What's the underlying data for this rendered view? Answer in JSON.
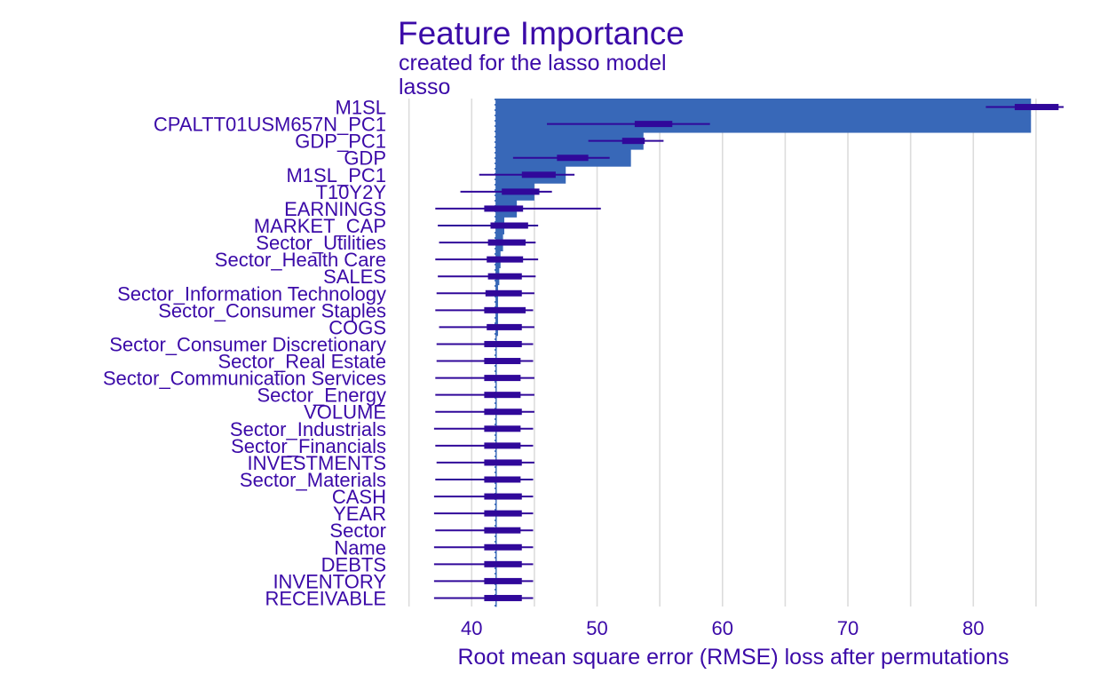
{
  "chart_data": {
    "type": "bar",
    "title": "Feature Importance",
    "subtitle": "created for the lasso model",
    "panel_label": "lasso",
    "xlabel": "Root mean square error (RMSE) loss after permutations",
    "xlim": [
      34.6,
      87.2
    ],
    "xticks": [
      40,
      50,
      60,
      70,
      80
    ],
    "baseline": 41.9,
    "grid": true,
    "colors": {
      "bar": "#3868b8",
      "boxplot": "#30089a",
      "text": "#3b0aa8",
      "grid": "#dcdcdc",
      "baseline": "#3868b8"
    },
    "features": [
      {
        "name": "M1SL",
        "value": 84.6,
        "whisker": [
          81.0,
          87.2
        ],
        "box": [
          83.3,
          86.8
        ]
      },
      {
        "name": "CPALTT01USM657N_PC1",
        "value": 84.6,
        "whisker": [
          46.0,
          59.0
        ],
        "box": [
          53.0,
          56.0
        ]
      },
      {
        "name": "GDP_PC1",
        "value": 53.7,
        "whisker": [
          49.3,
          55.3
        ],
        "box": [
          52.0,
          53.8
        ]
      },
      {
        "name": "GDP",
        "value": 52.7,
        "whisker": [
          43.3,
          51.0
        ],
        "box": [
          46.8,
          49.3
        ]
      },
      {
        "name": "M1SL_PC1",
        "value": 47.5,
        "whisker": [
          40.6,
          48.2
        ],
        "box": [
          44.0,
          46.7
        ]
      },
      {
        "name": "T10Y2Y",
        "value": 45.0,
        "whisker": [
          39.1,
          46.4
        ],
        "box": [
          42.4,
          45.4
        ]
      },
      {
        "name": "EARNINGS",
        "value": 43.6,
        "whisker": [
          37.1,
          50.3
        ],
        "box": [
          41.0,
          44.1
        ]
      },
      {
        "name": "MARKET_CAP",
        "value": 42.6,
        "whisker": [
          37.3,
          45.3
        ],
        "box": [
          41.5,
          44.5
        ]
      },
      {
        "name": "Sector_Utilities",
        "value": 42.5,
        "whisker": [
          37.4,
          45.1
        ],
        "box": [
          41.3,
          44.3
        ]
      },
      {
        "name": "Sector_Health Care",
        "value": 42.3,
        "whisker": [
          37.1,
          45.3
        ],
        "box": [
          41.2,
          44.1
        ]
      },
      {
        "name": "SALES",
        "value": 42.2,
        "whisker": [
          37.3,
          45.1
        ],
        "box": [
          41.3,
          44.0
        ]
      },
      {
        "name": "Sector_Information Technology",
        "value": 42.1,
        "whisker": [
          37.2,
          45.0
        ],
        "box": [
          41.1,
          44.0
        ]
      },
      {
        "name": "Sector_Consumer Staples",
        "value": 42.1,
        "whisker": [
          37.1,
          44.9
        ],
        "box": [
          41.0,
          44.3
        ]
      },
      {
        "name": "COGS",
        "value": 42.1,
        "whisker": [
          37.4,
          45.0
        ],
        "box": [
          41.2,
          44.0
        ]
      },
      {
        "name": "Sector_Consumer Discretionary",
        "value": 42.0,
        "whisker": [
          37.2,
          44.9
        ],
        "box": [
          41.0,
          44.0
        ]
      },
      {
        "name": "Sector_Real Estate",
        "value": 42.0,
        "whisker": [
          37.2,
          44.9
        ],
        "box": [
          41.0,
          43.9
        ]
      },
      {
        "name": "Sector_Communication Services",
        "value": 42.0,
        "whisker": [
          37.1,
          45.0
        ],
        "box": [
          41.0,
          43.9
        ]
      },
      {
        "name": "Sector_Energy",
        "value": 42.0,
        "whisker": [
          37.1,
          45.0
        ],
        "box": [
          41.0,
          43.9
        ]
      },
      {
        "name": "VOLUME",
        "value": 42.0,
        "whisker": [
          37.1,
          45.0
        ],
        "box": [
          41.0,
          44.0
        ]
      },
      {
        "name": "Sector_Industrials",
        "value": 42.0,
        "whisker": [
          37.0,
          44.9
        ],
        "box": [
          41.0,
          43.9
        ]
      },
      {
        "name": "Sector_Financials",
        "value": 42.0,
        "whisker": [
          37.1,
          44.9
        ],
        "box": [
          41.0,
          43.9
        ]
      },
      {
        "name": "INVESTMENTS",
        "value": 42.0,
        "whisker": [
          37.2,
          45.0
        ],
        "box": [
          41.0,
          44.0
        ]
      },
      {
        "name": "Sector_Materials",
        "value": 42.0,
        "whisker": [
          37.1,
          44.9
        ],
        "box": [
          41.0,
          43.9
        ]
      },
      {
        "name": "CASH",
        "value": 42.0,
        "whisker": [
          37.0,
          44.9
        ],
        "box": [
          41.0,
          44.0
        ]
      },
      {
        "name": "YEAR",
        "value": 42.0,
        "whisker": [
          37.0,
          44.9
        ],
        "box": [
          41.0,
          44.0
        ]
      },
      {
        "name": "Sector",
        "value": 42.0,
        "whisker": [
          37.1,
          44.9
        ],
        "box": [
          41.0,
          43.9
        ]
      },
      {
        "name": "Name",
        "value": 42.0,
        "whisker": [
          37.0,
          44.9
        ],
        "box": [
          41.0,
          44.0
        ]
      },
      {
        "name": "DEBTS",
        "value": 42.0,
        "whisker": [
          37.0,
          44.9
        ],
        "box": [
          41.0,
          44.0
        ]
      },
      {
        "name": "INVENTORY",
        "value": 42.0,
        "whisker": [
          37.0,
          44.9
        ],
        "box": [
          41.0,
          44.0
        ]
      },
      {
        "name": "RECEIVABLE",
        "value": 42.0,
        "whisker": [
          37.0,
          44.9
        ],
        "box": [
          41.0,
          44.0
        ]
      }
    ]
  }
}
